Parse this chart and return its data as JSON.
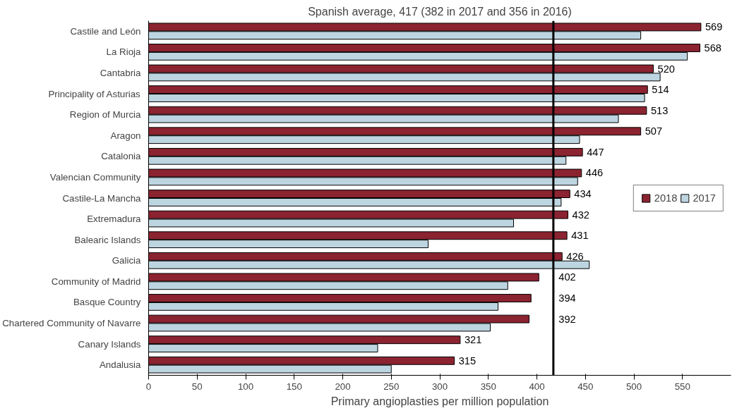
{
  "chart_data": {
    "type": "bar",
    "orientation": "horizontal",
    "title": "Spanish average, 417 (382 in 2017 and 356 in 2016)",
    "xlabel": "Primary angioplasties per million population",
    "categories": [
      "Castile and León",
      "La Rioja",
      "Cantabria",
      "Principality of Asturias",
      "Region of Murcia",
      "Aragon",
      "Catalonia",
      "Valencian Community",
      "Castile-La Mancha",
      "Extremadura",
      "Balearic Islands",
      "Galicia",
      "Community of Madrid",
      "Basque Country",
      "Chartered Community of Navarre",
      "Canary Islands",
      "Andalusia"
    ],
    "series": [
      {
        "name": "2018",
        "color": "#8b2330",
        "values": [
          569,
          568,
          520,
          514,
          513,
          507,
          447,
          446,
          434,
          432,
          431,
          426,
          402,
          394,
          392,
          321,
          315
        ],
        "value_labels": [
          "569",
          "568",
          "520",
          "514",
          "513",
          "507",
          "447",
          "446",
          "434",
          "432",
          "431",
          "426",
          "402",
          "394",
          "392",
          "321",
          "315"
        ]
      },
      {
        "name": "2017",
        "color": "#bdd5e1",
        "values": [
          507,
          555,
          527,
          511,
          484,
          444,
          430,
          442,
          425,
          376,
          288,
          454,
          370,
          360,
          352,
          236,
          250
        ]
      }
    ],
    "xlim": [
      0,
      600
    ],
    "xticks": [
      0,
      50,
      100,
      150,
      200,
      250,
      300,
      350,
      400,
      450,
      500,
      550
    ],
    "ref_lines": [
      {
        "axis": "x",
        "value": 417,
        "color": "#000000"
      }
    ],
    "grid": false,
    "legend": "right"
  }
}
